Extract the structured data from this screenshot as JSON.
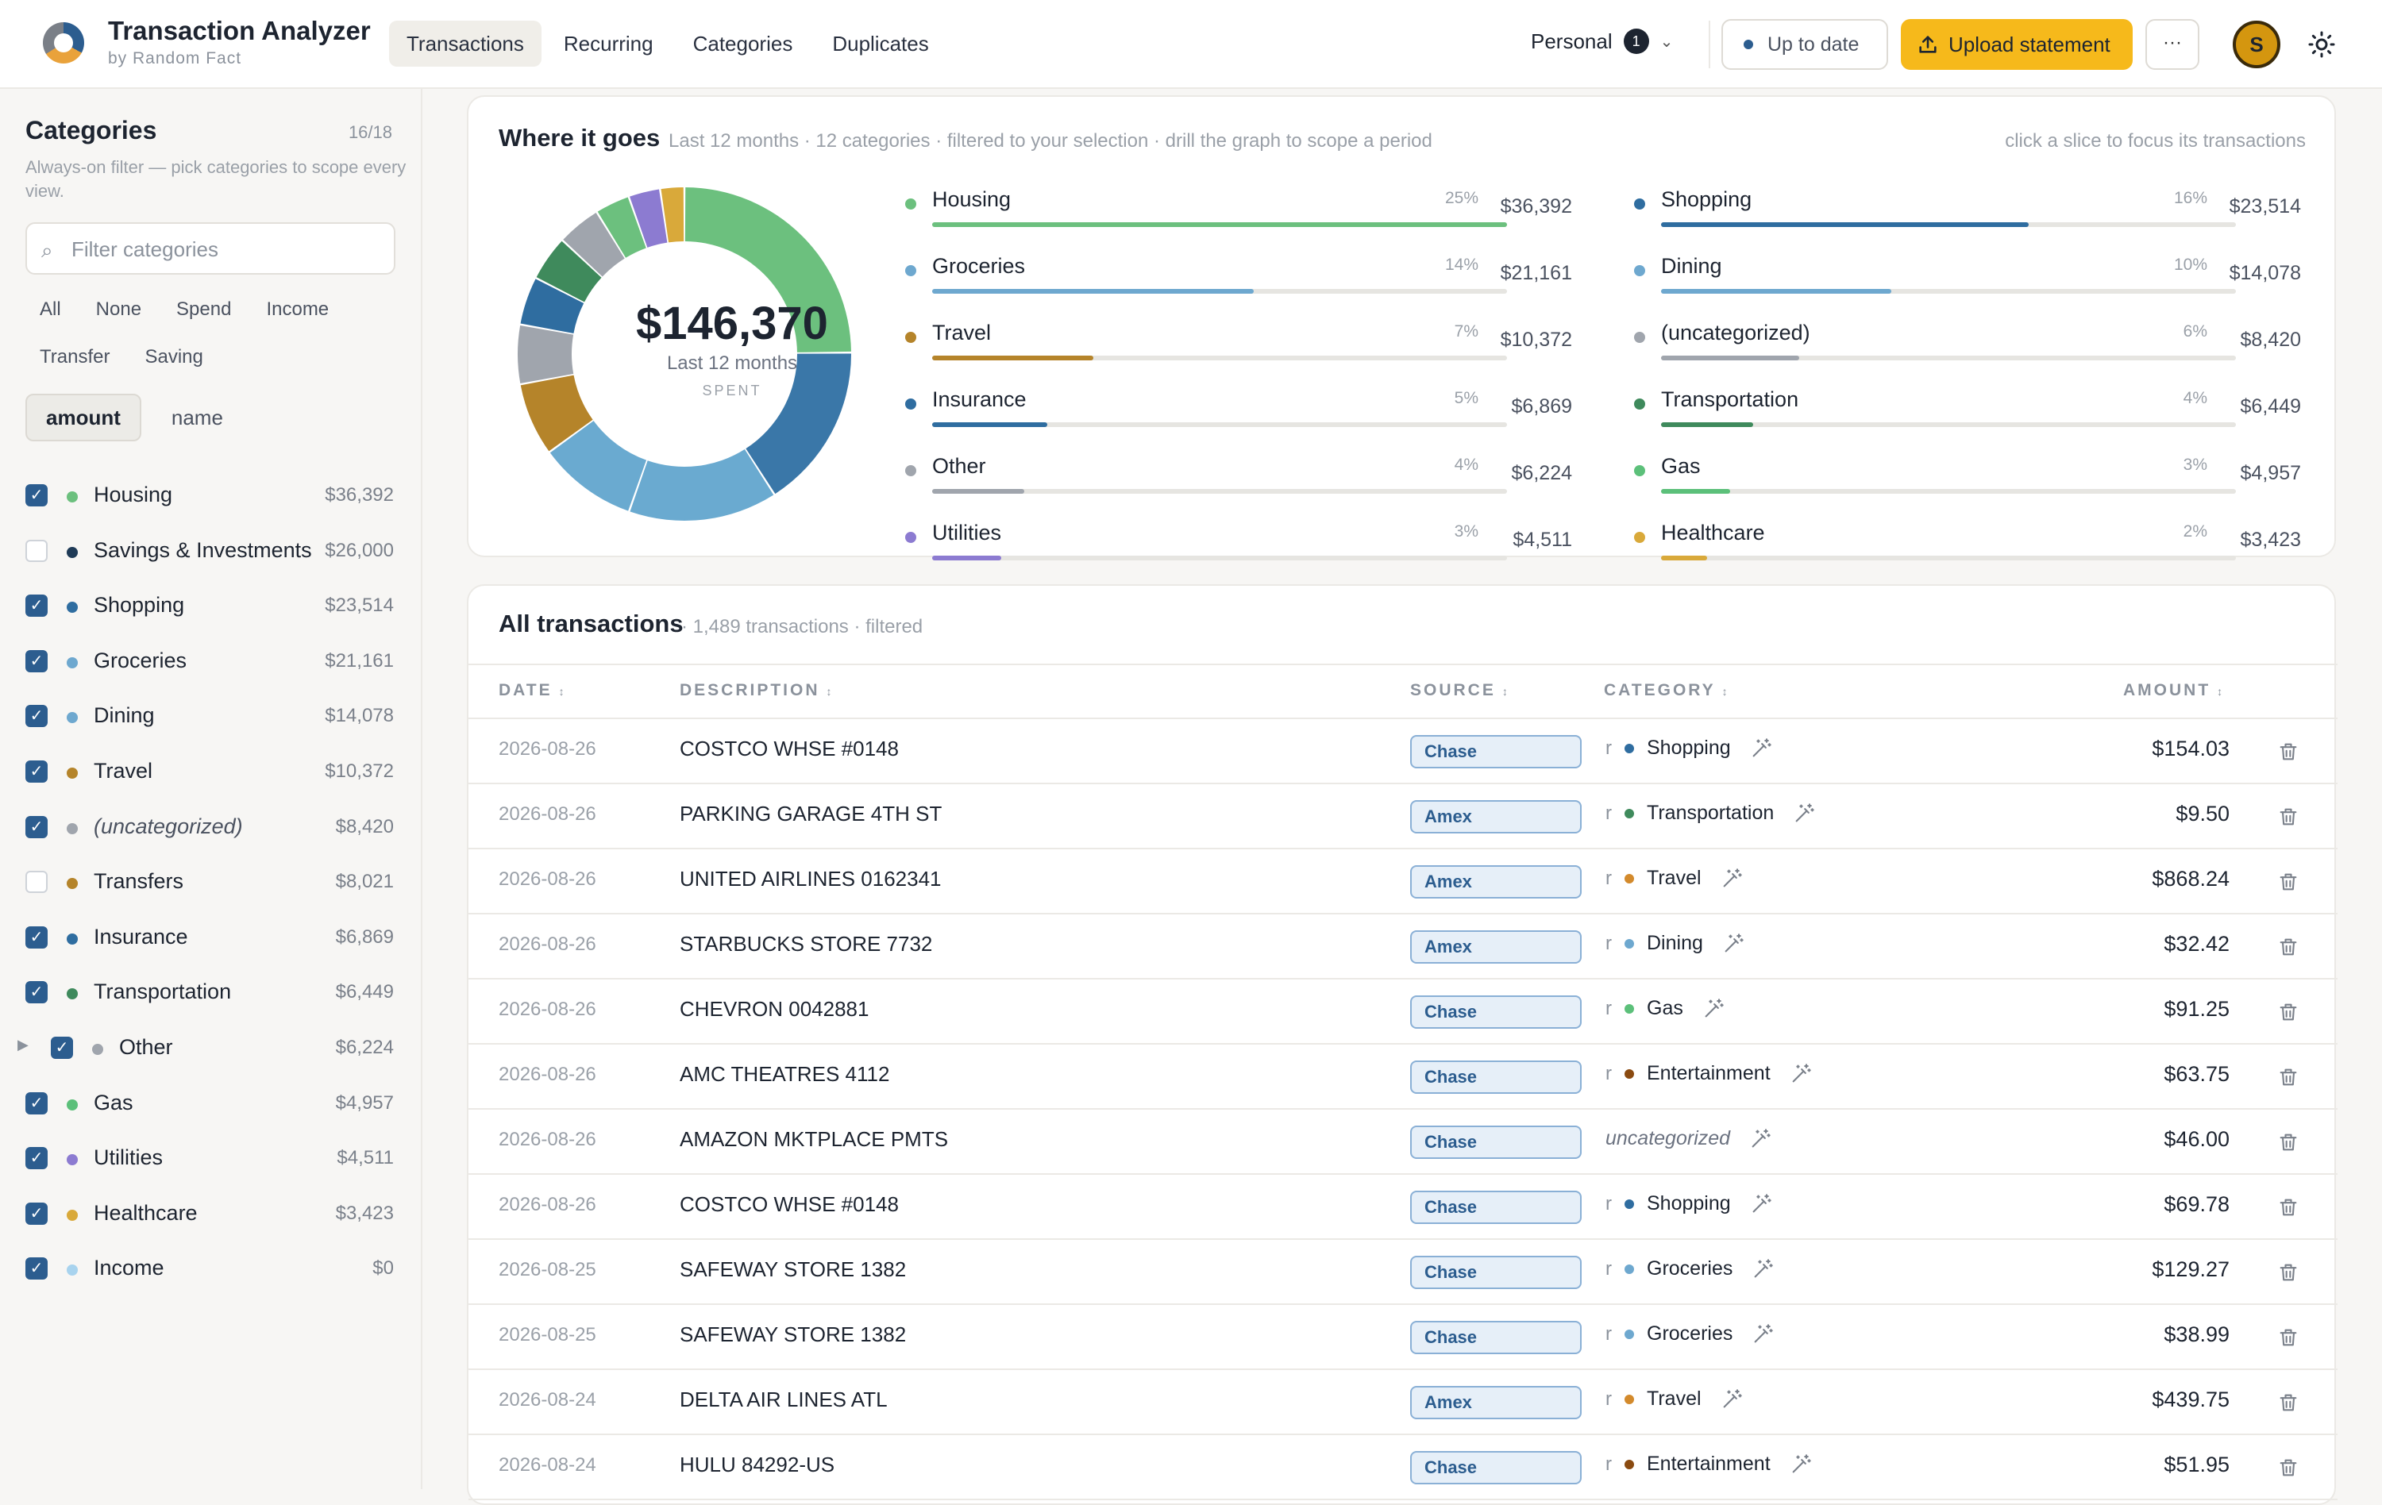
{
  "header": {
    "title": "Transaction Analyzer",
    "subtitle": "by Random Fact",
    "nav": [
      {
        "label": "Transactions",
        "active": true
      },
      {
        "label": "Recurring",
        "active": false
      },
      {
        "label": "Categories",
        "active": false
      },
      {
        "label": "Duplicates",
        "active": false
      }
    ],
    "workspace": "Personal",
    "workspace_badge": "1",
    "status": "Up to date",
    "upload_label": "Upload statement",
    "more_label": "···",
    "avatar_initial": "S"
  },
  "sidebar": {
    "title": "Categories",
    "count": "16/18",
    "description": "Always-on filter — pick categories to scope every view.",
    "search_placeholder": "Filter categories",
    "quick_filters": [
      "All",
      "None",
      "Spend",
      "Income",
      "Transfer",
      "Saving"
    ],
    "sort": [
      {
        "label": "amount",
        "active": true
      },
      {
        "label": "name",
        "active": false
      }
    ],
    "categories": [
      {
        "name": "Housing",
        "amount": "$36,392",
        "checked": true,
        "color": "#6cc07e",
        "italic": false,
        "expandable": false
      },
      {
        "name": "Savings & Investments",
        "amount": "$26,000",
        "checked": false,
        "color": "#1f3b57",
        "italic": false,
        "expandable": false
      },
      {
        "name": "Shopping",
        "amount": "$23,514",
        "checked": true,
        "color": "#2f6da0",
        "italic": false,
        "expandable": false
      },
      {
        "name": "Groceries",
        "amount": "$21,161",
        "checked": true,
        "color": "#6ea8cf",
        "italic": false,
        "expandable": false
      },
      {
        "name": "Dining",
        "amount": "$14,078",
        "checked": true,
        "color": "#6ea8cf",
        "italic": false,
        "expandable": false
      },
      {
        "name": "Travel",
        "amount": "$10,372",
        "checked": true,
        "color": "#b5842a",
        "italic": false,
        "expandable": false
      },
      {
        "name": "(uncategorized)",
        "amount": "$8,420",
        "checked": true,
        "color": "#a0a5ad",
        "italic": true,
        "expandable": false
      },
      {
        "name": "Transfers",
        "amount": "$8,021",
        "checked": false,
        "color": "#b5842a",
        "italic": false,
        "expandable": false
      },
      {
        "name": "Insurance",
        "amount": "$6,869",
        "checked": true,
        "color": "#2f6da0",
        "italic": false,
        "expandable": false
      },
      {
        "name": "Transportation",
        "amount": "$6,449",
        "checked": true,
        "color": "#3f8a5c",
        "italic": false,
        "expandable": false
      },
      {
        "name": "Other",
        "amount": "$6,224",
        "checked": true,
        "color": "#a0a5ad",
        "italic": false,
        "expandable": true
      },
      {
        "name": "Gas",
        "amount": "$4,957",
        "checked": true,
        "color": "#5cc07a",
        "italic": false,
        "expandable": false
      },
      {
        "name": "Utilities",
        "amount": "$4,511",
        "checked": true,
        "color": "#8c7bd1",
        "italic": false,
        "expandable": false
      },
      {
        "name": "Healthcare",
        "amount": "$3,423",
        "checked": true,
        "color": "#d9a93a",
        "italic": false,
        "expandable": false
      },
      {
        "name": "Income",
        "amount": "$0",
        "checked": true,
        "color": "#a8d3ee",
        "italic": false,
        "expandable": false
      }
    ]
  },
  "breakdown": {
    "title": "Where it goes",
    "subtitle": "Last 12 months · 12 categories · filtered to your selection · drill the graph to scope a period",
    "hint": "click a slice to focus its transactions",
    "total": "$146,370",
    "period": "Last 12 months",
    "spent_label": "SPENT",
    "chart_data": {
      "type": "pie",
      "categories": [
        "Housing",
        "Shopping",
        "Groceries",
        "Dining",
        "Travel",
        "(uncategorized)",
        "Insurance",
        "Transportation",
        "Other",
        "Gas",
        "Utilities",
        "Healthcare"
      ],
      "values": [
        36392,
        23514,
        21161,
        14078,
        10372,
        8420,
        6869,
        6449,
        6224,
        4957,
        4511,
        3423
      ],
      "colors": [
        "#6cc07e",
        "#3a77a8",
        "#6aaad0",
        "#6aaad0",
        "#b5842a",
        "#a0a5ad",
        "#2f6da0",
        "#3f8a5c",
        "#a0a5ad",
        "#6cc07e",
        "#8c7bd1",
        "#d9a93a"
      ]
    },
    "legend": [
      {
        "name": "Housing",
        "pct": "25%",
        "value": "$36,392",
        "share": 25,
        "color": "#6cc07e"
      },
      {
        "name": "Shopping",
        "pct": "16%",
        "value": "$23,514",
        "share": 16,
        "color": "#2f6da0"
      },
      {
        "name": "Groceries",
        "pct": "14%",
        "value": "$21,161",
        "share": 14,
        "color": "#6ea8cf"
      },
      {
        "name": "Dining",
        "pct": "10%",
        "value": "$14,078",
        "share": 10,
        "color": "#6ea8cf"
      },
      {
        "name": "Travel",
        "pct": "7%",
        "value": "$10,372",
        "share": 7,
        "color": "#b5842a"
      },
      {
        "name": "(uncategorized)",
        "pct": "6%",
        "value": "$8,420",
        "share": 6,
        "color": "#a0a5ad"
      },
      {
        "name": "Insurance",
        "pct": "5%",
        "value": "$6,869",
        "share": 5,
        "color": "#2f6da0"
      },
      {
        "name": "Transportation",
        "pct": "4%",
        "value": "$6,449",
        "share": 4,
        "color": "#3f8a5c"
      },
      {
        "name": "Other",
        "pct": "4%",
        "value": "$6,224",
        "share": 4,
        "color": "#a0a5ad"
      },
      {
        "name": "Gas",
        "pct": "3%",
        "value": "$4,957",
        "share": 3,
        "color": "#5cc07a"
      },
      {
        "name": "Utilities",
        "pct": "3%",
        "value": "$4,511",
        "share": 3,
        "color": "#8c7bd1"
      },
      {
        "name": "Healthcare",
        "pct": "2%",
        "value": "$3,423",
        "share": 2,
        "color": "#d9a93a"
      }
    ]
  },
  "transactions": {
    "title": "All transactions",
    "subtitle": "· 1,489 transactions · filtered",
    "columns": {
      "date": "DATE",
      "description": "DESCRIPTION",
      "source": "SOURCE",
      "category": "CATEGORY",
      "amount": "AMOUNT",
      "sort_glyph": "↕"
    },
    "rule_marker": "r",
    "rows": [
      {
        "date": "2026-08-26",
        "description": "COSTCO WHSE #0148",
        "source": "Chase",
        "category": "Shopping",
        "color": "#2f6da0",
        "amount": "$154.03",
        "uncategorized": false
      },
      {
        "date": "2026-08-26",
        "description": "PARKING GARAGE 4TH ST",
        "source": "Amex",
        "category": "Transportation",
        "color": "#3f8a5c",
        "amount": "$9.50",
        "uncategorized": false
      },
      {
        "date": "2026-08-26",
        "description": "UNITED AIRLINES 0162341",
        "source": "Amex",
        "category": "Travel",
        "color": "#d38a2c",
        "amount": "$868.24",
        "uncategorized": false
      },
      {
        "date": "2026-08-26",
        "description": "STARBUCKS STORE 7732",
        "source": "Amex",
        "category": "Dining",
        "color": "#6ea8cf",
        "amount": "$32.42",
        "uncategorized": false
      },
      {
        "date": "2026-08-26",
        "description": "CHEVRON 0042881",
        "source": "Chase",
        "category": "Gas",
        "color": "#5cc07a",
        "amount": "$91.25",
        "uncategorized": false
      },
      {
        "date": "2026-08-26",
        "description": "AMC THEATRES 4112",
        "source": "Chase",
        "category": "Entertainment",
        "color": "#8a4a10",
        "amount": "$63.75",
        "uncategorized": false
      },
      {
        "date": "2026-08-26",
        "description": "AMAZON MKTPLACE PMTS",
        "source": "Chase",
        "category": "uncategorized",
        "color": "",
        "amount": "$46.00",
        "uncategorized": true
      },
      {
        "date": "2026-08-26",
        "description": "COSTCO WHSE #0148",
        "source": "Chase",
        "category": "Shopping",
        "color": "#2f6da0",
        "amount": "$69.78",
        "uncategorized": false
      },
      {
        "date": "2026-08-25",
        "description": "SAFEWAY STORE 1382",
        "source": "Chase",
        "category": "Groceries",
        "color": "#6ea8cf",
        "amount": "$129.27",
        "uncategorized": false
      },
      {
        "date": "2026-08-25",
        "description": "SAFEWAY STORE 1382",
        "source": "Chase",
        "category": "Groceries",
        "color": "#6ea8cf",
        "amount": "$38.99",
        "uncategorized": false
      },
      {
        "date": "2026-08-24",
        "description": "DELTA AIR LINES ATL",
        "source": "Amex",
        "category": "Travel",
        "color": "#d38a2c",
        "amount": "$439.75",
        "uncategorized": false
      },
      {
        "date": "2026-08-24",
        "description": "HULU 84292-US",
        "source": "Chase",
        "category": "Entertainment",
        "color": "#8a4a10",
        "amount": "$51.95",
        "uncategorized": false
      }
    ]
  }
}
